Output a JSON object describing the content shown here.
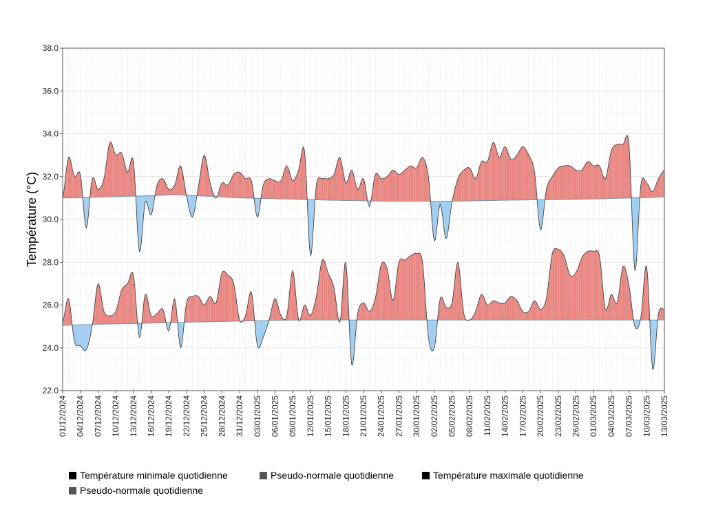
{
  "chart_data": {
    "type": "area",
    "ylabel": "Température (°C)",
    "ylim": [
      22,
      38
    ],
    "yticks": [
      "22.0",
      "24.0",
      "26.0",
      "28.0",
      "30.0",
      "32.0",
      "34.0",
      "36.0",
      "38.0"
    ],
    "xlim": [
      "2024-12-01",
      "2025-03-13"
    ],
    "xticks": [
      "01/12/2024",
      "04/12/2024",
      "07/12/2024",
      "10/12/2024",
      "13/12/2024",
      "16/12/2024",
      "19/12/2024",
      "22/12/2024",
      "25/12/2024",
      "28/12/2024",
      "31/12/2024",
      "03/01/2025",
      "06/01/2025",
      "09/01/2025",
      "12/01/2025",
      "15/01/2025",
      "18/01/2025",
      "21/01/2025",
      "24/01/2025",
      "27/01/2025",
      "30/01/2025",
      "02/02/2025",
      "05/02/2025",
      "08/02/2025",
      "11/02/2025",
      "14/02/2025",
      "17/02/2025",
      "20/02/2025",
      "23/02/2025",
      "26/02/2025",
      "01/03/2025",
      "04/03/2025",
      "07/03/2025",
      "10/03/2025",
      "13/03/2025"
    ],
    "grid": true,
    "legend_position": "bottom",
    "colors": {
      "above": "#e8847f",
      "below": "#9ecbf0",
      "line": "#444444",
      "normal_line": "#7a8fa3"
    },
    "series": [
      {
        "name": "Température maximale quotidienne",
        "values": [
          [
            "2024-12-01",
            31.0
          ],
          [
            "2024-12-02",
            32.9
          ],
          [
            "2024-12-03",
            32.0
          ],
          [
            "2024-12-04",
            32.1
          ],
          [
            "2024-12-05",
            29.6
          ],
          [
            "2024-12-06",
            31.9
          ],
          [
            "2024-12-07",
            31.4
          ],
          [
            "2024-12-08",
            31.9
          ],
          [
            "2024-12-09",
            33.6
          ],
          [
            "2024-12-10",
            33.0
          ],
          [
            "2024-12-11",
            33.1
          ],
          [
            "2024-12-12",
            32.2
          ],
          [
            "2024-12-13",
            32.7
          ],
          [
            "2024-12-14",
            28.5
          ],
          [
            "2024-12-15",
            30.8
          ],
          [
            "2024-12-16",
            30.2
          ],
          [
            "2024-12-17",
            31.6
          ],
          [
            "2024-12-18",
            31.9
          ],
          [
            "2024-12-19",
            31.4
          ],
          [
            "2024-12-20",
            31.6
          ],
          [
            "2024-12-21",
            32.5
          ],
          [
            "2024-12-22",
            31.1
          ],
          [
            "2024-12-23",
            30.1
          ],
          [
            "2024-12-24",
            31.5
          ],
          [
            "2024-12-25",
            33.0
          ],
          [
            "2024-12-26",
            31.7
          ],
          [
            "2024-12-27",
            31.0
          ],
          [
            "2024-12-28",
            31.7
          ],
          [
            "2024-12-29",
            31.6
          ],
          [
            "2024-12-30",
            32.1
          ],
          [
            "2024-12-31",
            32.2
          ],
          [
            "2025-01-01",
            31.9
          ],
          [
            "2025-01-02",
            31.8
          ],
          [
            "2025-01-03",
            30.1
          ],
          [
            "2025-01-04",
            31.6
          ],
          [
            "2025-01-05",
            31.9
          ],
          [
            "2025-01-06",
            31.8
          ],
          [
            "2025-01-07",
            31.8
          ],
          [
            "2025-01-08",
            32.5
          ],
          [
            "2025-01-09",
            31.8
          ],
          [
            "2025-01-10",
            32.3
          ],
          [
            "2025-01-11",
            33.2
          ],
          [
            "2025-01-12",
            28.3
          ],
          [
            "2025-01-13",
            31.6
          ],
          [
            "2025-01-14",
            31.9
          ],
          [
            "2025-01-15",
            31.9
          ],
          [
            "2025-01-16",
            32.1
          ],
          [
            "2025-01-17",
            32.9
          ],
          [
            "2025-01-18",
            31.7
          ],
          [
            "2025-01-19",
            32.3
          ],
          [
            "2025-01-20",
            31.4
          ],
          [
            "2025-01-21",
            31.9
          ],
          [
            "2025-01-22",
            30.6
          ],
          [
            "2025-01-23",
            32.1
          ],
          [
            "2025-01-24",
            31.9
          ],
          [
            "2025-01-25",
            32.0
          ],
          [
            "2025-01-26",
            32.3
          ],
          [
            "2025-01-27",
            32.1
          ],
          [
            "2025-01-28",
            32.3
          ],
          [
            "2025-01-29",
            32.5
          ],
          [
            "2025-01-30",
            32.4
          ],
          [
            "2025-01-31",
            32.9
          ],
          [
            "2025-02-01",
            32.0
          ],
          [
            "2025-02-02",
            29.0
          ],
          [
            "2025-02-03",
            30.7
          ],
          [
            "2025-02-04",
            29.1
          ],
          [
            "2025-02-05",
            30.8
          ],
          [
            "2025-02-06",
            31.9
          ],
          [
            "2025-02-07",
            32.3
          ],
          [
            "2025-02-08",
            32.4
          ],
          [
            "2025-02-09",
            31.9
          ],
          [
            "2025-02-10",
            32.7
          ],
          [
            "2025-02-11",
            32.7
          ],
          [
            "2025-02-12",
            33.6
          ],
          [
            "2025-02-13",
            32.9
          ],
          [
            "2025-02-14",
            33.4
          ],
          [
            "2025-02-15",
            32.8
          ],
          [
            "2025-02-16",
            33.0
          ],
          [
            "2025-02-17",
            33.4
          ],
          [
            "2025-02-18",
            33.0
          ],
          [
            "2025-02-19",
            32.2
          ],
          [
            "2025-02-20",
            29.5
          ],
          [
            "2025-02-21",
            31.4
          ],
          [
            "2025-02-22",
            32.0
          ],
          [
            "2025-02-23",
            32.4
          ],
          [
            "2025-02-24",
            32.5
          ],
          [
            "2025-02-25",
            32.5
          ],
          [
            "2025-02-26",
            32.3
          ],
          [
            "2025-02-27",
            32.3
          ],
          [
            "2025-02-28",
            32.7
          ],
          [
            "2025-03-01",
            32.5
          ],
          [
            "2025-03-02",
            32.5
          ],
          [
            "2025-03-03",
            31.9
          ],
          [
            "2025-03-04",
            33.2
          ],
          [
            "2025-03-05",
            33.5
          ],
          [
            "2025-03-06",
            33.5
          ],
          [
            "2025-03-07",
            33.5
          ],
          [
            "2025-03-08",
            27.6
          ],
          [
            "2025-03-09",
            31.6
          ],
          [
            "2025-03-10",
            31.7
          ],
          [
            "2025-03-11",
            31.3
          ],
          [
            "2025-03-12",
            31.9
          ],
          [
            "2025-03-13",
            32.3
          ]
        ]
      },
      {
        "name": "Pseudo-normale quotidienne",
        "role": "normal_max",
        "values": [
          [
            "2024-12-01",
            31.0
          ],
          [
            "2024-12-15",
            31.1
          ],
          [
            "2024-12-20",
            31.15
          ],
          [
            "2025-01-01",
            31.0
          ],
          [
            "2025-01-15",
            30.9
          ],
          [
            "2025-01-25",
            30.85
          ],
          [
            "2025-02-01",
            30.85
          ],
          [
            "2025-02-05",
            30.85
          ],
          [
            "2025-02-15",
            30.9
          ],
          [
            "2025-03-01",
            30.95
          ],
          [
            "2025-03-13",
            31.05
          ]
        ]
      },
      {
        "name": "Température minimale quotidienne",
        "values": [
          [
            "2024-12-01",
            25.2
          ],
          [
            "2024-12-02",
            26.3
          ],
          [
            "2024-12-03",
            24.3
          ],
          [
            "2024-12-04",
            24.1
          ],
          [
            "2024-12-05",
            23.9
          ],
          [
            "2024-12-06",
            25.0
          ],
          [
            "2024-12-07",
            27.0
          ],
          [
            "2024-12-08",
            25.7
          ],
          [
            "2024-12-09",
            25.5
          ],
          [
            "2024-12-10",
            25.7
          ],
          [
            "2024-12-11",
            26.7
          ],
          [
            "2024-12-12",
            27.0
          ],
          [
            "2024-12-13",
            27.4
          ],
          [
            "2024-12-14",
            24.5
          ],
          [
            "2024-12-15",
            26.5
          ],
          [
            "2024-12-16",
            25.5
          ],
          [
            "2024-12-17",
            25.6
          ],
          [
            "2024-12-18",
            25.8
          ],
          [
            "2024-12-19",
            24.8
          ],
          [
            "2024-12-20",
            26.3
          ],
          [
            "2024-12-21",
            24.0
          ],
          [
            "2024-12-22",
            26.1
          ],
          [
            "2024-12-23",
            26.4
          ],
          [
            "2024-12-24",
            26.4
          ],
          [
            "2024-12-25",
            26.0
          ],
          [
            "2024-12-26",
            26.4
          ],
          [
            "2024-12-27",
            26.1
          ],
          [
            "2024-12-28",
            27.5
          ],
          [
            "2024-12-29",
            27.4
          ],
          [
            "2024-12-30",
            27.0
          ],
          [
            "2024-12-31",
            25.3
          ],
          [
            "2025-01-01",
            25.5
          ],
          [
            "2025-01-02",
            26.6
          ],
          [
            "2025-01-03",
            24.1
          ],
          [
            "2025-01-04",
            24.5
          ],
          [
            "2025-01-05",
            25.3
          ],
          [
            "2025-01-06",
            26.3
          ],
          [
            "2025-01-07",
            25.5
          ],
          [
            "2025-01-08",
            25.5
          ],
          [
            "2025-01-09",
            27.6
          ],
          [
            "2025-01-10",
            25.3
          ],
          [
            "2025-01-11",
            26.0
          ],
          [
            "2025-01-12",
            25.5
          ],
          [
            "2025-01-13",
            26.4
          ],
          [
            "2025-01-14",
            28.1
          ],
          [
            "2025-01-15",
            27.5
          ],
          [
            "2025-01-16",
            26.8
          ],
          [
            "2025-01-17",
            25.2
          ],
          [
            "2025-01-18",
            28.0
          ],
          [
            "2025-01-19",
            23.2
          ],
          [
            "2025-01-20",
            25.6
          ],
          [
            "2025-01-21",
            26.1
          ],
          [
            "2025-01-22",
            25.7
          ],
          [
            "2025-01-23",
            26.3
          ],
          [
            "2025-01-24",
            27.9
          ],
          [
            "2025-01-25",
            27.7
          ],
          [
            "2025-01-26",
            26.2
          ],
          [
            "2025-01-27",
            28.0
          ],
          [
            "2025-01-28",
            28.1
          ],
          [
            "2025-01-29",
            28.3
          ],
          [
            "2025-01-30",
            28.4
          ],
          [
            "2025-01-31",
            28.0
          ],
          [
            "2025-02-01",
            24.5
          ],
          [
            "2025-02-02",
            24.0
          ],
          [
            "2025-02-03",
            26.3
          ],
          [
            "2025-02-04",
            25.9
          ],
          [
            "2025-02-05",
            26.1
          ],
          [
            "2025-02-06",
            28.0
          ],
          [
            "2025-02-07",
            25.6
          ],
          [
            "2025-02-08",
            25.3
          ],
          [
            "2025-02-09",
            25.7
          ],
          [
            "2025-02-10",
            26.5
          ],
          [
            "2025-02-11",
            26.0
          ],
          [
            "2025-02-12",
            26.2
          ],
          [
            "2025-02-13",
            26.1
          ],
          [
            "2025-02-14",
            26.1
          ],
          [
            "2025-02-15",
            26.4
          ],
          [
            "2025-02-16",
            26.2
          ],
          [
            "2025-02-17",
            25.7
          ],
          [
            "2025-02-18",
            25.7
          ],
          [
            "2025-02-19",
            26.2
          ],
          [
            "2025-02-20",
            25.8
          ],
          [
            "2025-02-21",
            26.3
          ],
          [
            "2025-02-22",
            28.4
          ],
          [
            "2025-02-23",
            28.6
          ],
          [
            "2025-02-24",
            28.3
          ],
          [
            "2025-02-25",
            27.4
          ],
          [
            "2025-02-26",
            27.5
          ],
          [
            "2025-02-27",
            28.2
          ],
          [
            "2025-02-28",
            28.5
          ],
          [
            "2025-03-01",
            28.5
          ],
          [
            "2025-03-02",
            28.3
          ],
          [
            "2025-03-03",
            25.8
          ],
          [
            "2025-03-04",
            26.5
          ],
          [
            "2025-03-05",
            26.1
          ],
          [
            "2025-03-06",
            27.8
          ],
          [
            "2025-03-07",
            26.9
          ],
          [
            "2025-03-08",
            25.0
          ],
          [
            "2025-03-09",
            25.4
          ],
          [
            "2025-03-10",
            27.8
          ],
          [
            "2025-03-11",
            23.0
          ],
          [
            "2025-03-12",
            25.6
          ],
          [
            "2025-03-13",
            25.8
          ]
        ]
      },
      {
        "name": "Pseudo-normale quotidienne",
        "role": "normal_min",
        "values": [
          [
            "2024-12-01",
            25.05
          ],
          [
            "2024-12-07",
            25.1
          ],
          [
            "2024-12-15",
            25.15
          ],
          [
            "2024-12-31",
            25.25
          ],
          [
            "2025-01-10",
            25.3
          ],
          [
            "2025-01-20",
            25.3
          ],
          [
            "2025-02-01",
            25.3
          ],
          [
            "2025-02-15",
            25.3
          ],
          [
            "2025-03-01",
            25.3
          ],
          [
            "2025-03-13",
            25.3
          ]
        ]
      }
    ],
    "legend": [
      {
        "label": "Température minimale quotidienne",
        "color": "#000000"
      },
      {
        "label": "Pseudo-normale quotidienne",
        "color": "#555555"
      },
      {
        "label": "Température maximale quotidienne",
        "color": "#000000"
      },
      {
        "label": "Pseudo-normale quotidienne",
        "color": "#555555"
      }
    ]
  }
}
